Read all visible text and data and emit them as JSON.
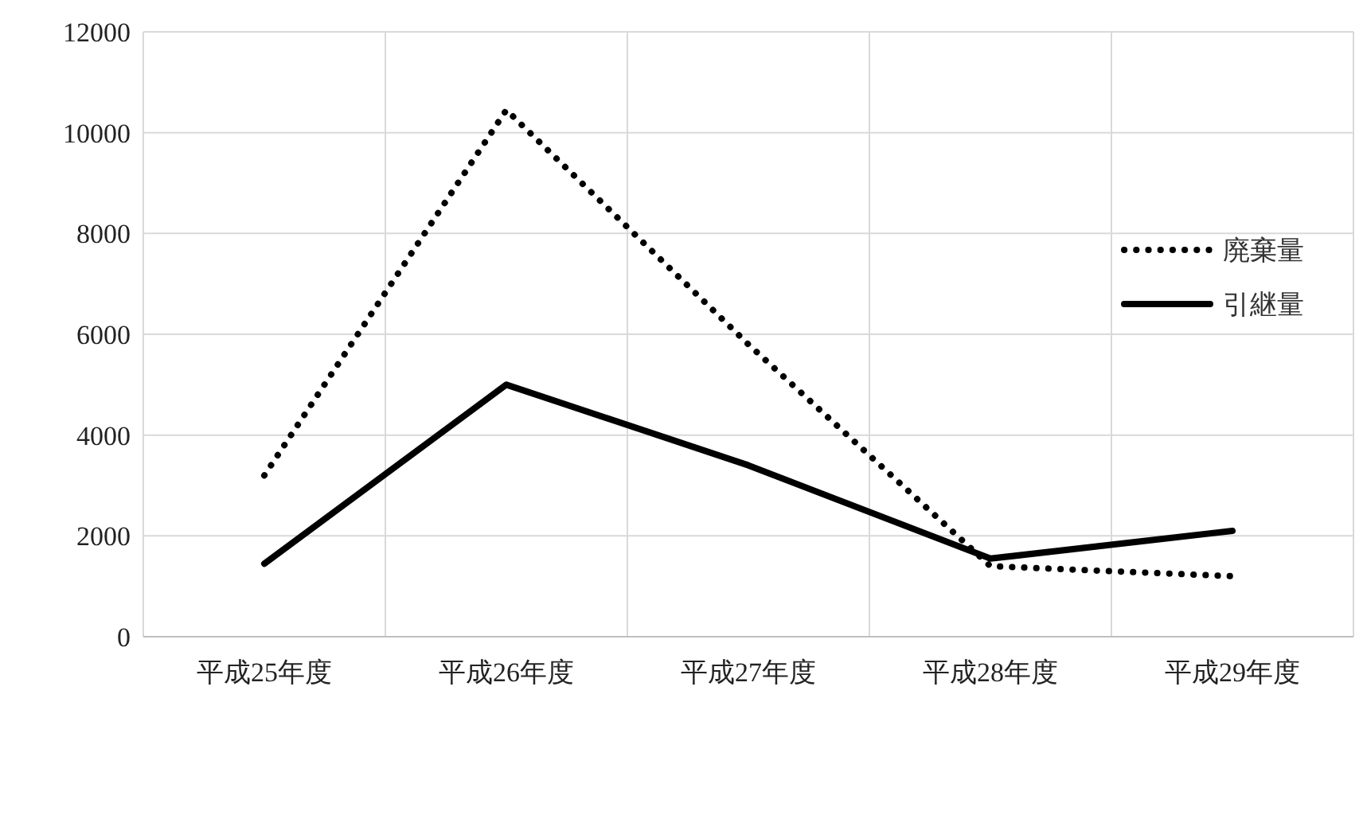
{
  "chart_data": {
    "type": "line",
    "categories": [
      "平成25年度",
      "平成26年度",
      "平成27年度",
      "平成28年度",
      "平成29年度"
    ],
    "series": [
      {
        "name": "廃棄量",
        "color": "#000000",
        "line_style": "dotted",
        "values": [
          3200,
          10450,
          5800,
          1400,
          1200
        ]
      },
      {
        "name": "引継量",
        "color": "#000000",
        "line_style": "solid",
        "values": [
          1450,
          5000,
          3400,
          1550,
          2100
        ]
      }
    ],
    "ylim": [
      0,
      12000
    ],
    "yticks": [
      0,
      2000,
      4000,
      6000,
      8000,
      10000,
      12000
    ],
    "grid": true,
    "legend": "right",
    "marker": "none"
  }
}
